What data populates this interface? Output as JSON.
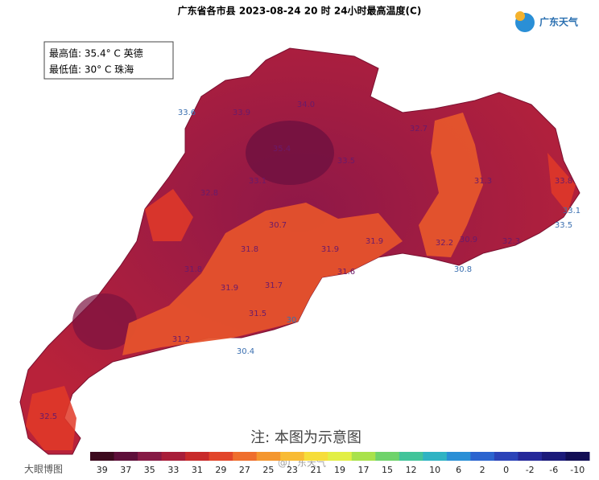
{
  "header": {
    "title": "广东省各市县 2023-08-24 20 时 24小时最高温度(C)",
    "logo": "广东天气"
  },
  "info_box": {
    "max_line": "最高值: 35.4° C 英德",
    "min_line": "最低值: 30° C 珠海"
  },
  "note": "注: 本图为示意图",
  "watermarks": [
    "大眼博图",
    "@广东天气"
  ],
  "map_labels": [
    "35.4",
    "33.9",
    "32.8",
    "33.1",
    "34.0",
    "33.5",
    "32.7",
    "31.8",
    "30.7",
    "31.9",
    "31.6",
    "31.9",
    "32.2",
    "30.9",
    "31.3",
    "30.8",
    "31.8",
    "31.7",
    "31.5",
    "30.4",
    "30",
    "31.2",
    "33.1",
    "33.5",
    "33.6",
    "32.5",
    "31.9",
    "32.3",
    "33.8"
  ],
  "legend": {
    "ticks": [
      "39",
      "37",
      "35",
      "33",
      "31",
      "29",
      "27",
      "25",
      "23",
      "21",
      "19",
      "17",
      "15",
      "12",
      "10",
      "6",
      "2",
      "0",
      "-2",
      "-6",
      "-10"
    ],
    "colors": [
      "#3d0a1e",
      "#5e0f3a",
      "#861a45",
      "#a81e3a",
      "#c82a2a",
      "#e2452a",
      "#ef6e2d",
      "#f4962e",
      "#f8bb35",
      "#f6dd3a",
      "#e2ef44",
      "#a9e24b",
      "#6fd36b",
      "#42c49a",
      "#2fb3c3",
      "#2a8fd6",
      "#2b64cf",
      "#2b43b8",
      "#25289a",
      "#1b1a7a",
      "#120e55"
    ]
  }
}
